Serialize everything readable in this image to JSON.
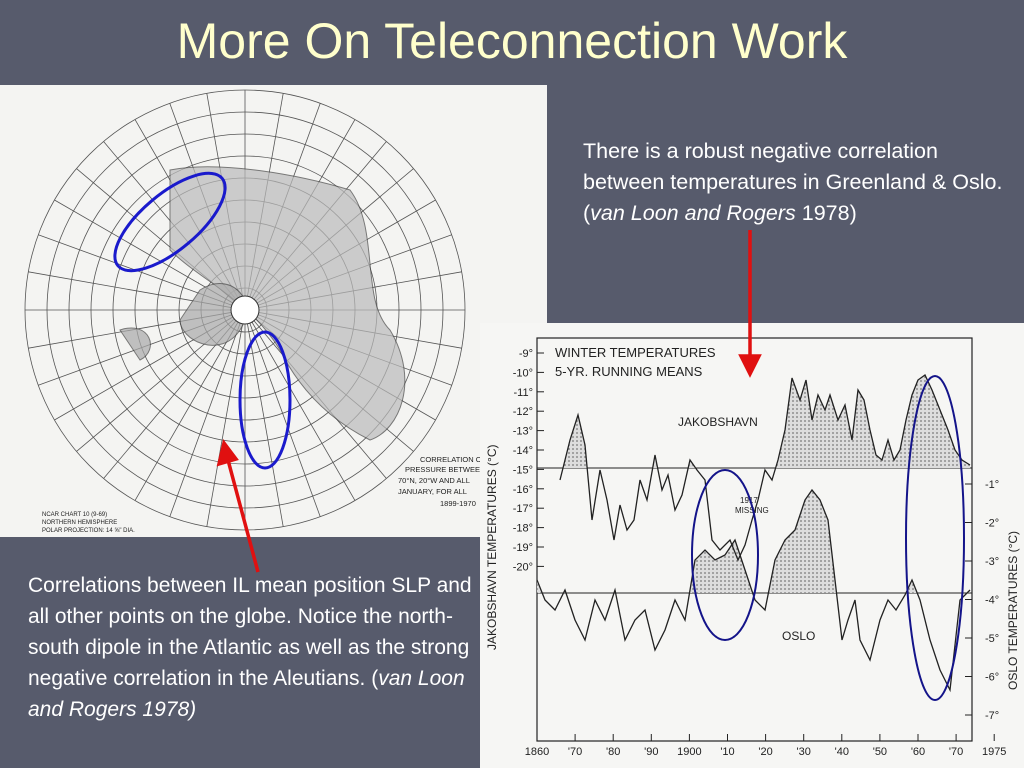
{
  "title": "More On Teleconnection Work",
  "right_text": {
    "parts": [
      "There is a robust negative correlation between temperatures in Greenland & Oslo. (",
      "van Loon and Rogers",
      " 1978)"
    ]
  },
  "left_text": {
    "parts": [
      "Correlations between IL mean position SLP and all other points on the globe. Notice the north-south dipole in the Atlantic as well as the strong negative correlation in the Aleutians. (",
      "van Loon and Rogers 1978)"
    ]
  },
  "map": {
    "chart_note": [
      "NCAR CHART 10 (9-69)",
      "NORTHERN HEMISPHERE",
      "POLAR PROJECTION: 14 ⅝\" DIA."
    ],
    "caption": [
      "CORRELATION OF",
      "PRESSURE BETWEEN",
      "70°N, 20°W AND ALL",
      "JANUARY, FOR ALL",
      "1899-1970"
    ]
  },
  "figure": {
    "title": [
      "WINTER TEMPERATURES",
      "5-YR. RUNNING MEANS"
    ],
    "series_labels": [
      "JAKOBSHAVN",
      "OSLO"
    ],
    "note": [
      "1917",
      "MISSING"
    ],
    "left_axis_label": "JAKOBSHAVN TEMPERATURES (°C)",
    "left_ticks": [
      "-9°",
      "-10°",
      "-11°",
      "-12°",
      "-13°",
      "-14°",
      "-15°",
      "-16°",
      "-17°",
      "-18°",
      "-19°",
      "-20°"
    ],
    "right_axis_label": "OSLO TEMPERATURES (°C)",
    "right_ticks": [
      "-1°",
      "-2°",
      "-3°",
      "-4°",
      "-5°",
      "-6°",
      "-7°"
    ],
    "x_ticks": [
      "1860",
      "'70",
      "'80",
      "'90",
      "1900",
      "'10",
      "'20",
      "'30",
      "'40",
      "'50",
      "'60",
      "'70",
      "1975"
    ]
  }
}
